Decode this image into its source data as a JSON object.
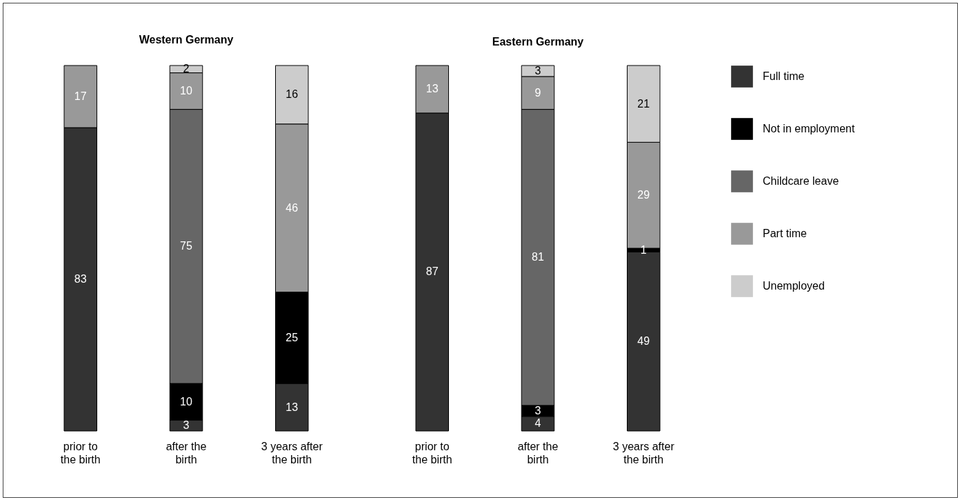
{
  "chart_data": [
    {
      "type": "bar",
      "title": "Western Germany",
      "categories": [
        "prior to the birth",
        "after the birth",
        "3 years after the birth"
      ],
      "stacked": true,
      "data_labels": true,
      "legend": "right",
      "series": [
        {
          "name": "Full time",
          "color": "#333333",
          "values": [
            83,
            3,
            13
          ]
        },
        {
          "name": "Not in employment",
          "color": "#000000",
          "values": [
            null,
            10,
            25
          ]
        },
        {
          "name": "Childcare leave",
          "color": "#666666",
          "values": [
            null,
            75,
            null
          ]
        },
        {
          "name": "Part time",
          "color": "#999999",
          "values": [
            17,
            10,
            46
          ]
        },
        {
          "name": "Unemployed",
          "color": "#cccccc",
          "values": [
            null,
            2,
            16
          ]
        }
      ]
    },
    {
      "type": "bar",
      "title": "Eastern Germany",
      "categories": [
        "prior to the birth",
        "after the birth",
        "3 years after the birth"
      ],
      "stacked": true,
      "data_labels": true,
      "series": [
        {
          "color": "#333333",
          "values": [
            87,
            4,
            49
          ]
        },
        {
          "color": "#000000",
          "values": [
            null,
            3,
            1
          ]
        },
        {
          "color": "#666666",
          "values": [
            null,
            81,
            null
          ]
        },
        {
          "color": "#999999",
          "values": [
            13,
            9,
            29
          ]
        },
        {
          "color": "#cccccc",
          "values": [
            null,
            3,
            21
          ]
        }
      ]
    }
  ]
}
